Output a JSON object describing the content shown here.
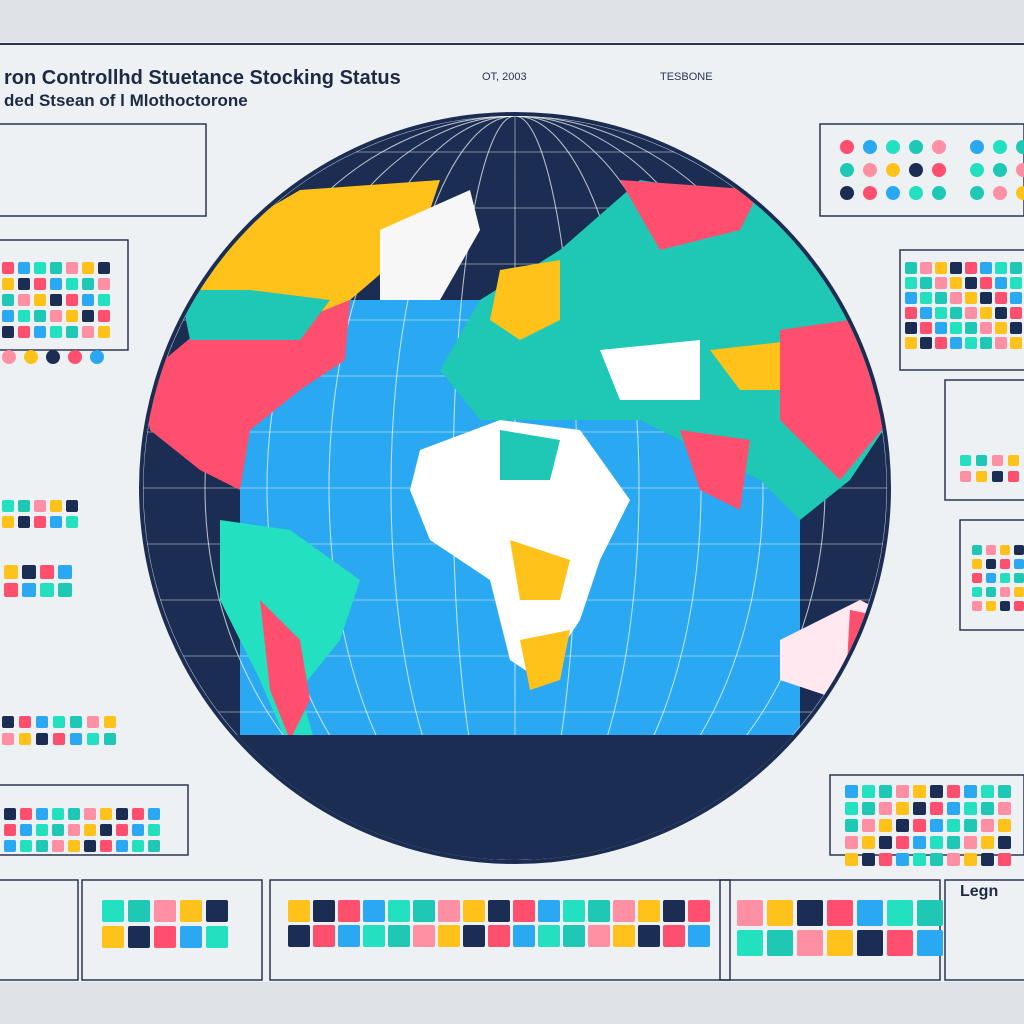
{
  "header": {
    "title": "ron Controllhd Stuetance Stocking Status",
    "subtitle": "ded Stsean of l Mlothoctorone",
    "date": "OT, 2003",
    "tag": "TESBONE"
  },
  "legend": {
    "title": "Legn"
  }
}
